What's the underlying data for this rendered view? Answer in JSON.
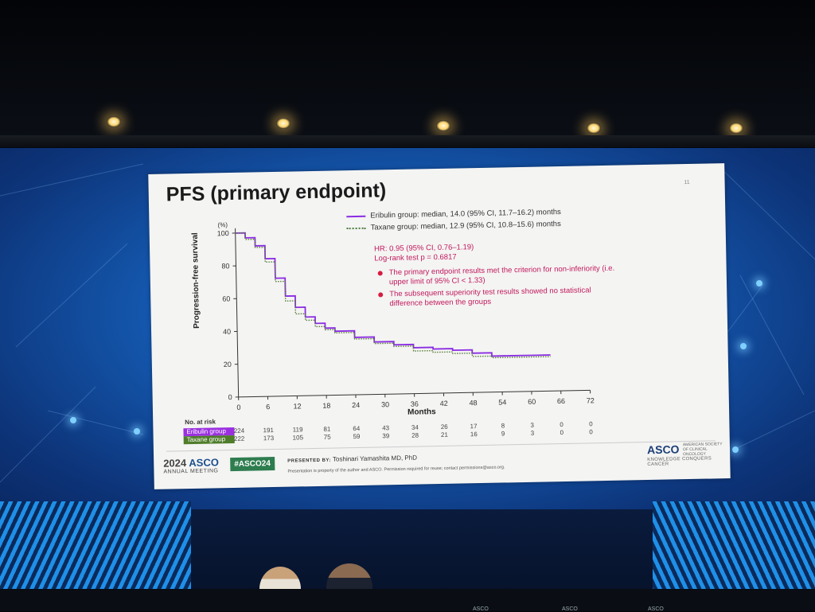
{
  "slide": {
    "title": "PFS (primary endpoint)",
    "page_number": "11",
    "y_unit": "(%)",
    "y_label": "Progression-free survival",
    "x_label": "Months",
    "legend": {
      "eribulin": "Eribulin group: median, 14.0 (95% CI, 11.7–16.2) months",
      "taxane": "Taxane group: median, 12.9 (95% CI, 10.8–15.6) months"
    },
    "stats": {
      "hr": "HR: 0.95 (95% CI, 0.76–1.19)",
      "logrank": "Log-rank test p = 0.6817"
    },
    "bullets": [
      "The primary endpoint results met the criterion for non-inferiority (i.e. upper limit of 95% CI < 1.33)",
      "The subsequent superiority test results showed no statistical difference between the groups"
    ],
    "risk_table": {
      "title": "No. at risk",
      "rows": [
        {
          "name": "Eribulin group",
          "color": "#9b30e0",
          "values": [
            "224",
            "191",
            "119",
            "81",
            "64",
            "43",
            "34",
            "26",
            "17",
            "8",
            "3",
            "0",
            "0"
          ]
        },
        {
          "name": "Taxane group",
          "color": "#4f7d2a",
          "values": [
            "222",
            "173",
            "105",
            "75",
            "59",
            "39",
            "28",
            "21",
            "16",
            "9",
            "3",
            "0",
            "0"
          ]
        }
      ]
    },
    "footer": {
      "meeting_year": "2024",
      "meeting_org": "ASCO",
      "meeting_sub": "ANNUAL MEETING",
      "hashtag": "#ASCO24",
      "presented_key": "PRESENTED BY:",
      "presenter": "Toshinari Yamashita MD, PhD",
      "notice": "Presentation is property of the author and ASCO. Permission required for reuse; contact permissions@asco.org.",
      "asco_logo": "ASCO",
      "asco_logo_small": "AMERICAN SOCIETY OF CLINICAL ONCOLOGY",
      "asco_tagline": "KNOWLEDGE CONQUERS CANCER"
    }
  },
  "stage": {
    "desk_label": "ASCO"
  },
  "chart_data": {
    "type": "line",
    "ylabel": "Progression-free survival",
    "xlabel": "Months",
    "ylim": [
      0,
      100
    ],
    "xlim": [
      0,
      72
    ],
    "x_ticks": [
      0,
      6,
      12,
      18,
      24,
      30,
      36,
      42,
      48,
      54,
      60,
      66,
      72
    ],
    "y_ticks": [
      0,
      20,
      40,
      60,
      80,
      100
    ],
    "series": [
      {
        "name": "Eribulin group",
        "color": "#8a2be2",
        "style": "solid",
        "x": [
          0,
          2,
          4,
          6,
          8,
          10,
          12,
          14,
          16,
          18,
          20,
          24,
          28,
          32,
          36,
          40,
          44,
          48,
          52,
          56,
          60,
          64
        ],
        "y": [
          100,
          97,
          92,
          84,
          72,
          61,
          54,
          48,
          44,
          41,
          39,
          35,
          32,
          30,
          28,
          27,
          26,
          24,
          22,
          22,
          22,
          22
        ]
      },
      {
        "name": "Taxane group",
        "color": "#5a7d3a",
        "style": "dotted",
        "x": [
          0,
          2,
          4,
          6,
          8,
          10,
          12,
          14,
          16,
          18,
          20,
          24,
          28,
          32,
          36,
          40,
          44,
          48,
          52,
          56,
          60,
          64
        ],
        "y": [
          100,
          96,
          91,
          82,
          70,
          58,
          50,
          46,
          42,
          40,
          38,
          34,
          31,
          29,
          26,
          25,
          24,
          22,
          21,
          21,
          21,
          21
        ]
      }
    ]
  }
}
